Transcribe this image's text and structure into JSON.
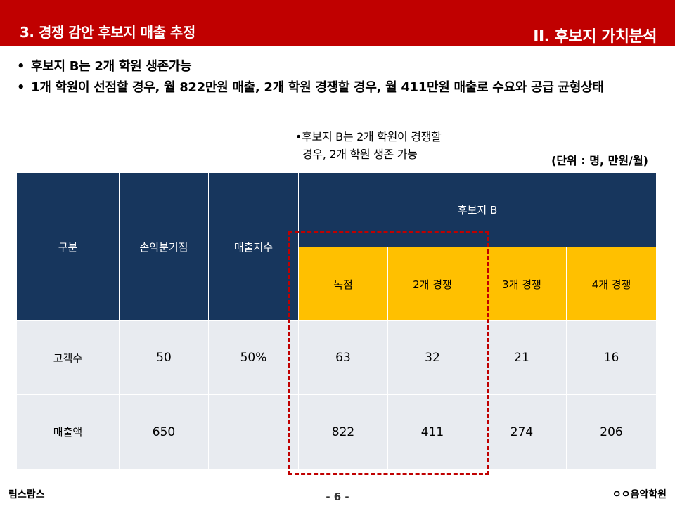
{
  "header": {
    "title": "3. 경쟁 감안 후보지 매출 추정",
    "section": "II. 후보지 가치분석",
    "bar_color": "#c00000"
  },
  "bullets": [
    "후보지 B는 2개 학원 생존가능",
    "1개 학원이 선점할 경우, 월 822만원 매출, 2개 학원 경쟁할 경우, 월 411만원 매출로 수요와 공급 균형상태"
  ],
  "callout": {
    "line1": "•후보지 B는 2개 학원이 경쟁할",
    "line2": "경우, 2개 학원 생존 가능"
  },
  "unit_note": "(단위 : 명, 만원/월)",
  "table": {
    "header": {
      "col_label": "구분",
      "breakeven": "손익분기점",
      "sales_index": "매출지수",
      "group": "후보지 B",
      "scenarios": [
        "독점",
        "2개 경쟁",
        "3개 경쟁",
        "4개 경쟁"
      ]
    },
    "rows": [
      {
        "label": "고객수",
        "breakeven": "50",
        "sales_index": "50%",
        "values": [
          "63",
          "32",
          "21",
          "16"
        ]
      },
      {
        "label": "매출액",
        "breakeven": "650",
        "sales_index": "",
        "values": [
          "822",
          "411",
          "274",
          "206"
        ]
      }
    ],
    "header_color": "#17365d",
    "subheader_color": "#ffc000",
    "cell_color": "#e8ebf0",
    "highlight_color": "#c00000"
  },
  "footer": {
    "left": "림스람스",
    "page": "- 6 -",
    "right": "ㅇㅇ음악학원"
  }
}
